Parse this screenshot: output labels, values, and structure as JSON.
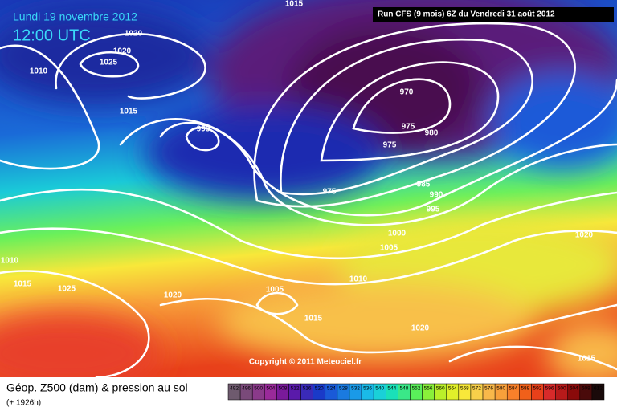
{
  "header": {
    "date": "Lundi 19 novembre 2012",
    "time": "12:00 UTC",
    "run": "Run CFS (9 mois) 6Z du Vendredi 31 août 2012"
  },
  "isobar_labels": [
    1015,
    1020,
    1020,
    1025,
    1010,
    1015,
    995,
    970,
    975,
    980,
    975,
    975,
    985,
    990,
    995,
    1000,
    1005,
    1020,
    1010,
    1015,
    1025,
    1005,
    1010,
    1020,
    1015,
    1020,
    1015
  ],
  "copyright": "Copyright © 2011 Meteociel.fr",
  "footer": {
    "title": "Géop. Z500 (dam) & pression au sol",
    "lead": "(+ 1926h)"
  },
  "scale": {
    "values": [
      492,
      496,
      500,
      504,
      508,
      512,
      516,
      520,
      524,
      528,
      532,
      536,
      540,
      544,
      548,
      552,
      556,
      560,
      564,
      568,
      572,
      576,
      580,
      584,
      588,
      592,
      596,
      600,
      604,
      608,
      612
    ],
    "colors": [
      "#6e5a6e",
      "#7a4a7a",
      "#8a3a8a",
      "#9a2a9a",
      "#7a1a9a",
      "#5a1aaa",
      "#3a2ab8",
      "#1a3ac8",
      "#1a5ad8",
      "#1a7ae0",
      "#1a9ae8",
      "#1abae8",
      "#1ad0d8",
      "#1ae0b8",
      "#3ae888",
      "#5af05a",
      "#8af03a",
      "#baf02a",
      "#e0f02a",
      "#f8e83a",
      "#f8d04a",
      "#f8b84a",
      "#f8a03a",
      "#f8802a",
      "#f0601a",
      "#e8401a",
      "#d82a2a",
      "#b81a1a",
      "#8a0a0a",
      "#4a0a0a",
      "#1a0a0a"
    ]
  }
}
